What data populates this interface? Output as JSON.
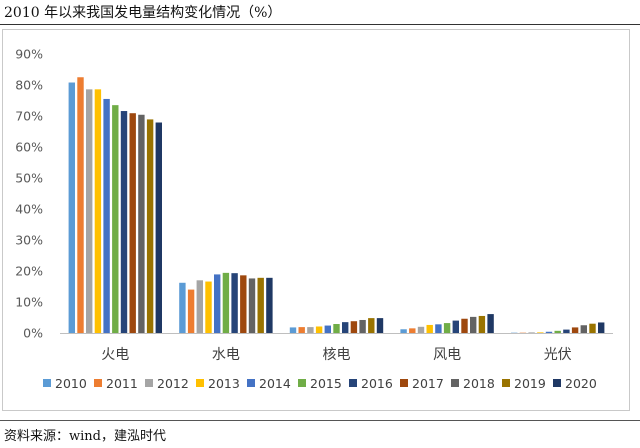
{
  "title": "2010 年以来我国发电量结构变化情况（%）",
  "source": "资料来源：wind，建泓时代",
  "chart_data": {
    "type": "bar",
    "categories": [
      "火电",
      "水电",
      "核电",
      "风电",
      "光伏"
    ],
    "y_ticks": [
      "90%",
      "80%",
      "70%",
      "60%",
      "50%",
      "40%",
      "30%",
      "20%",
      "10%",
      "0%"
    ],
    "ylim": [
      0,
      90
    ],
    "grid": false,
    "legend": "bottom",
    "series": [
      {
        "name": "2010",
        "color": "#5b9bd5",
        "values": [
          80.8,
          16.2,
          1.8,
          1.2,
          0.1
        ]
      },
      {
        "name": "2011",
        "color": "#ed7d31",
        "values": [
          82.5,
          14.0,
          1.9,
          1.5,
          0.1
        ]
      },
      {
        "name": "2012",
        "color": "#a5a5a5",
        "values": [
          78.6,
          17.0,
          1.9,
          2.0,
          0.2
        ]
      },
      {
        "name": "2013",
        "color": "#ffc000",
        "values": [
          78.6,
          16.6,
          2.1,
          2.6,
          0.2
        ]
      },
      {
        "name": "2014",
        "color": "#4472c4",
        "values": [
          75.5,
          18.9,
          2.4,
          2.8,
          0.4
        ]
      },
      {
        "name": "2015",
        "color": "#70ad47",
        "values": [
          73.5,
          19.4,
          2.9,
          3.2,
          0.7
        ]
      },
      {
        "name": "2016",
        "color": "#264478",
        "values": [
          71.6,
          19.3,
          3.5,
          4.0,
          1.1
        ]
      },
      {
        "name": "2017",
        "color": "#9e480e",
        "values": [
          70.9,
          18.6,
          3.8,
          4.6,
          1.8
        ]
      },
      {
        "name": "2018",
        "color": "#636363",
        "values": [
          70.4,
          17.6,
          4.2,
          5.2,
          2.5
        ]
      },
      {
        "name": "2019",
        "color": "#997300",
        "values": [
          68.9,
          17.8,
          4.8,
          5.5,
          3.0
        ]
      },
      {
        "name": "2020",
        "color": "#1f3864",
        "values": [
          67.9,
          17.8,
          4.8,
          6.1,
          3.4
        ]
      }
    ]
  }
}
